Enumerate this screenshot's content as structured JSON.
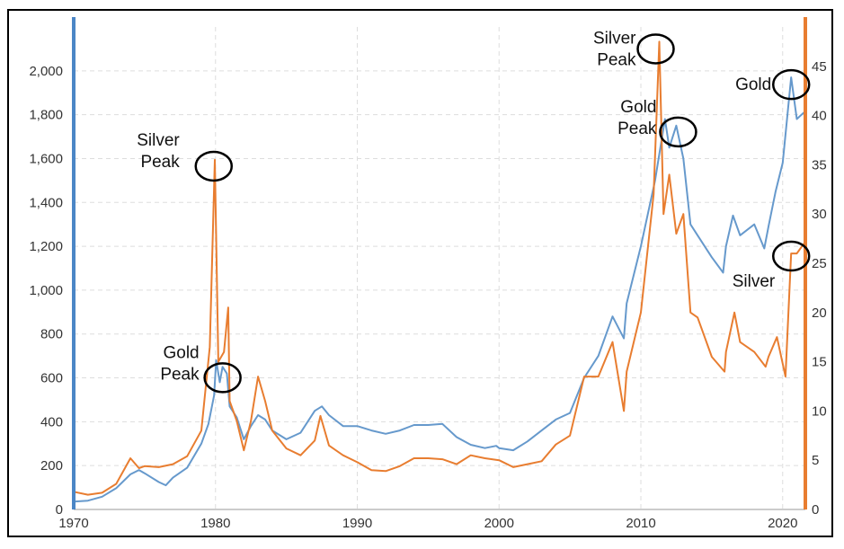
{
  "chart_data": {
    "type": "line",
    "title": "",
    "xlabel": "",
    "ylabel_left": "",
    "ylabel_right": "",
    "x_range": [
      1970,
      2021.6
    ],
    "ylim_left": [
      0,
      2200
    ],
    "ylim_right": [
      0,
      49
    ],
    "x_ticks": [
      "1970",
      "1980",
      "1990",
      "2000",
      "2010",
      "2020"
    ],
    "y_ticks_left": [
      "0",
      "200",
      "400",
      "600",
      "800",
      "1,000",
      "1,200",
      "1,400",
      "1,600",
      "1,800",
      "2,000"
    ],
    "y_ticks_right": [
      "0",
      "5",
      "10",
      "15",
      "20",
      "25",
      "30",
      "35",
      "40",
      "45"
    ],
    "grid": true,
    "colors": {
      "gold": "#6699cc",
      "silver": "#e87d30",
      "left_axis": "#4b86c6",
      "right_axis": "#e87d30"
    },
    "series": [
      {
        "name": "Gold",
        "axis": "left",
        "color": "#6699cc",
        "points": [
          [
            1970,
            36
          ],
          [
            1971,
            40
          ],
          [
            1972,
            58
          ],
          [
            1973,
            97
          ],
          [
            1974,
            160
          ],
          [
            1974.6,
            180
          ],
          [
            1975,
            165
          ],
          [
            1976,
            125
          ],
          [
            1976.5,
            110
          ],
          [
            1977,
            145
          ],
          [
            1978,
            190
          ],
          [
            1979,
            300
          ],
          [
            1979.5,
            390
          ],
          [
            1979.9,
            520
          ],
          [
            1980.05,
            680
          ],
          [
            1980.3,
            580
          ],
          [
            1980.5,
            650
          ],
          [
            1980.8,
            620
          ],
          [
            1981,
            470
          ],
          [
            1981.5,
            420
          ],
          [
            1982,
            320
          ],
          [
            1982.5,
            380
          ],
          [
            1983,
            430
          ],
          [
            1983.5,
            410
          ],
          [
            1984,
            360
          ],
          [
            1985,
            320
          ],
          [
            1986,
            350
          ],
          [
            1987,
            450
          ],
          [
            1987.5,
            470
          ],
          [
            1988,
            430
          ],
          [
            1989,
            380
          ],
          [
            1990,
            380
          ],
          [
            1991,
            360
          ],
          [
            1992,
            345
          ],
          [
            1993,
            360
          ],
          [
            1994,
            385
          ],
          [
            1995,
            385
          ],
          [
            1996,
            390
          ],
          [
            1997,
            330
          ],
          [
            1998,
            295
          ],
          [
            1999,
            280
          ],
          [
            1999.8,
            290
          ],
          [
            2000,
            280
          ],
          [
            2001,
            270
          ],
          [
            2002,
            310
          ],
          [
            2003,
            360
          ],
          [
            2004,
            410
          ],
          [
            2005,
            440
          ],
          [
            2006,
            600
          ],
          [
            2007,
            700
          ],
          [
            2008,
            880
          ],
          [
            2008.8,
            780
          ],
          [
            2009,
            940
          ],
          [
            2010,
            1200
          ],
          [
            2011,
            1500
          ],
          [
            2011.7,
            1780
          ],
          [
            2012,
            1650
          ],
          [
            2012.5,
            1750
          ],
          [
            2013,
            1600
          ],
          [
            2013.5,
            1300
          ],
          [
            2014,
            1250
          ],
          [
            2015,
            1150
          ],
          [
            2015.8,
            1080
          ],
          [
            2016,
            1200
          ],
          [
            2016.5,
            1340
          ],
          [
            2017,
            1250
          ],
          [
            2018,
            1300
          ],
          [
            2018.7,
            1190
          ],
          [
            2019,
            1290
          ],
          [
            2019.5,
            1450
          ],
          [
            2020,
            1580
          ],
          [
            2020.6,
            1970
          ],
          [
            2021,
            1780
          ],
          [
            2021.5,
            1810
          ]
        ]
      },
      {
        "name": "Silver",
        "axis": "right",
        "color": "#e87d30",
        "points": [
          [
            1970,
            1.8
          ],
          [
            1971,
            1.5
          ],
          [
            1972,
            1.7
          ],
          [
            1973,
            2.6
          ],
          [
            1974,
            5.2
          ],
          [
            1974.6,
            4.2
          ],
          [
            1975,
            4.4
          ],
          [
            1976,
            4.3
          ],
          [
            1977,
            4.6
          ],
          [
            1978,
            5.4
          ],
          [
            1979,
            8.0
          ],
          [
            1979.6,
            16.5
          ],
          [
            1979.95,
            35.5
          ],
          [
            1980.2,
            15.0
          ],
          [
            1980.6,
            16.0
          ],
          [
            1980.9,
            20.5
          ],
          [
            1981,
            11.0
          ],
          [
            1981.5,
            9.0
          ],
          [
            1982,
            6.0
          ],
          [
            1982.5,
            9.0
          ],
          [
            1983,
            13.5
          ],
          [
            1983.5,
            11.0
          ],
          [
            1984,
            8.0
          ],
          [
            1985,
            6.2
          ],
          [
            1986,
            5.5
          ],
          [
            1987,
            7.0
          ],
          [
            1987.4,
            9.5
          ],
          [
            1988,
            6.5
          ],
          [
            1989,
            5.5
          ],
          [
            1990,
            4.8
          ],
          [
            1991,
            4.0
          ],
          [
            1992,
            3.9
          ],
          [
            1993,
            4.4
          ],
          [
            1994,
            5.2
          ],
          [
            1995,
            5.2
          ],
          [
            1996,
            5.1
          ],
          [
            1997,
            4.6
          ],
          [
            1998,
            5.5
          ],
          [
            1999,
            5.2
          ],
          [
            2000,
            5.0
          ],
          [
            2001,
            4.3
          ],
          [
            2002,
            4.6
          ],
          [
            2003,
            4.9
          ],
          [
            2004,
            6.6
          ],
          [
            2005,
            7.5
          ],
          [
            2006,
            13.5
          ],
          [
            2007,
            13.5
          ],
          [
            2008,
            17.0
          ],
          [
            2008.8,
            10.0
          ],
          [
            2009,
            14.0
          ],
          [
            2010,
            20.0
          ],
          [
            2010.9,
            32.0
          ],
          [
            2011.3,
            47.5
          ],
          [
            2011.6,
            30.0
          ],
          [
            2012,
            34.0
          ],
          [
            2012.5,
            28.0
          ],
          [
            2013,
            30.0
          ],
          [
            2013.5,
            20.0
          ],
          [
            2014,
            19.5
          ],
          [
            2015,
            15.5
          ],
          [
            2015.9,
            14.0
          ],
          [
            2016,
            16.0
          ],
          [
            2016.6,
            20.0
          ],
          [
            2017,
            17.0
          ],
          [
            2018,
            16.0
          ],
          [
            2018.8,
            14.5
          ],
          [
            2019,
            15.5
          ],
          [
            2019.6,
            17.5
          ],
          [
            2020.2,
            13.5
          ],
          [
            2020.6,
            26.0
          ],
          [
            2021,
            26.0
          ],
          [
            2021.5,
            27.0
          ]
        ]
      }
    ],
    "annotations": [
      {
        "lines": [
          "Silver",
          "Peak"
        ],
        "near": [
          1980,
          35.5
        ],
        "axis": "right"
      },
      {
        "lines": [
          "Gold",
          "Peak"
        ],
        "near": [
          1980.5,
          650
        ],
        "axis": "left"
      },
      {
        "lines": [
          "Silver",
          "Peak"
        ],
        "near": [
          2011.3,
          47.5
        ],
        "axis": "right"
      },
      {
        "lines": [
          "Gold",
          "Peak"
        ],
        "near": [
          2012.5,
          1750
        ],
        "axis": "left"
      },
      {
        "lines": [
          "Gold"
        ],
        "near": [
          2020.6,
          1970
        ],
        "axis": "left"
      },
      {
        "lines": [
          "Silver"
        ],
        "near": [
          2020.6,
          26.0
        ],
        "axis": "right"
      }
    ]
  }
}
